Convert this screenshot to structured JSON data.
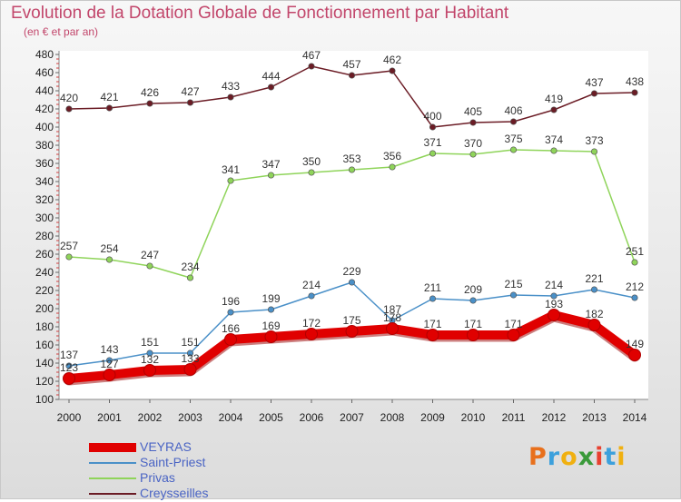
{
  "header": {
    "title": "Evolution de la Dotation Globale de Fonctionnement par Habitant",
    "subtitle": "(en € et par an)"
  },
  "logo": {
    "text": "Proxiti",
    "colors": [
      "#e8701c",
      "#3ca0dc",
      "#f0b010",
      "#3a9a3a",
      "#e84030",
      "#3ca0dc",
      "#f0b010"
    ]
  },
  "chart_data": {
    "type": "line",
    "title": "Evolution de la Dotation Globale de Fonctionnement par Habitant",
    "subtitle": "(en € et par an)",
    "x": [
      "2000",
      "2001",
      "2002",
      "2003",
      "2004",
      "2005",
      "2006",
      "2007",
      "2008",
      "2009",
      "2010",
      "2011",
      "2012",
      "2013",
      "2014"
    ],
    "ylim": [
      100,
      480
    ],
    "ytick_step": 20,
    "grid": false,
    "legend_position": "bottom-left",
    "series": [
      {
        "name": "Creysseilles",
        "color": "#6b1c25",
        "values": [
          420,
          421,
          426,
          427,
          433,
          444,
          467,
          457,
          462,
          400,
          405,
          406,
          419,
          437,
          438
        ]
      },
      {
        "name": "Privas",
        "color": "#8fd45a",
        "values": [
          257,
          254,
          247,
          234,
          341,
          347,
          350,
          353,
          356,
          371,
          370,
          375,
          374,
          373,
          251
        ]
      },
      {
        "name": "Saint-Priest",
        "color": "#4a90c8",
        "values": [
          137,
          143,
          151,
          151,
          196,
          199,
          214,
          229,
          187,
          211,
          209,
          215,
          214,
          221,
          212
        ]
      },
      {
        "name": "VEYRAS",
        "color": "#e00000",
        "values": [
          123,
          127,
          132,
          133,
          166,
          169,
          172,
          175,
          178,
          171,
          171,
          171,
          193,
          182,
          149
        ]
      }
    ]
  },
  "legend": [
    {
      "label": "VEYRAS",
      "color": "#e00000",
      "weight": 10
    },
    {
      "label": "Saint-Priest",
      "color": "#4a90c8",
      "weight": 2
    },
    {
      "label": "Privas",
      "color": "#8fd45a",
      "weight": 2
    },
    {
      "label": "Creysseilles",
      "color": "#6b1c25",
      "weight": 2
    }
  ]
}
